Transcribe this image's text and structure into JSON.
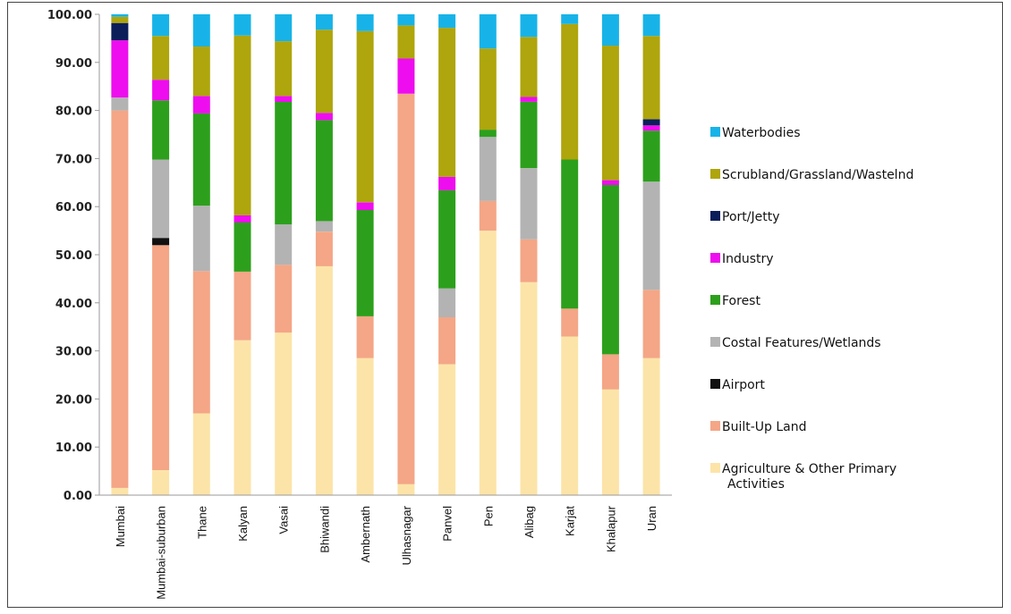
{
  "chart_data": {
    "type": "bar",
    "stacked": true,
    "title": "",
    "xlabel": "",
    "ylabel": "",
    "ylim": [
      0,
      100
    ],
    "yticks": [
      "0.00",
      "10.00",
      "20.00",
      "30.00",
      "40.00",
      "50.00",
      "60.00",
      "70.00",
      "80.00",
      "90.00",
      "100.00"
    ],
    "grid": false,
    "legend_position": "right",
    "categories": [
      "Mumbai",
      "Mumbai-suburban",
      "Thane",
      "Kalyan",
      "Vasai",
      "Bhiwandi",
      "Ambernath",
      "Ulhasnagar",
      "Panvel",
      "Pen",
      "Alibag",
      "Karjat",
      "Khalapur",
      "Uran"
    ],
    "series": [
      {
        "name": "Agriculture & Other Primary Activities",
        "color": "#FCE4A8",
        "values": [
          1.5,
          5.2,
          17.0,
          32.2,
          33.8,
          47.6,
          28.5,
          2.3,
          27.2,
          55.0,
          44.3,
          33.0,
          22.0,
          28.5
        ]
      },
      {
        "name": "Built-Up Land",
        "color": "#F4A686",
        "values": [
          78.5,
          46.8,
          29.6,
          14.3,
          14.1,
          7.2,
          8.7,
          81.2,
          9.8,
          6.2,
          8.9,
          5.8,
          7.3,
          14.2
        ]
      },
      {
        "name": "Airport",
        "color": "#111111",
        "values": [
          0,
          1.5,
          0,
          0,
          0,
          0,
          0,
          0,
          0,
          0,
          0,
          0,
          0,
          0
        ]
      },
      {
        "name": "Costal Features/Wetlands",
        "color": "#B3B3B3",
        "values": [
          2.7,
          16.3,
          13.6,
          0,
          8.4,
          2.2,
          0,
          0,
          6.0,
          13.3,
          14.8,
          0,
          0,
          22.5
        ]
      },
      {
        "name": "Forest",
        "color": "#2CA01C",
        "values": [
          0,
          12.3,
          19.2,
          10.2,
          25.5,
          21.0,
          22.1,
          0,
          20.4,
          1.5,
          13.8,
          31.0,
          35.2,
          10.6
        ]
      },
      {
        "name": "Industry",
        "color": "#EE0DEE",
        "values": [
          11.9,
          4.3,
          3.6,
          1.5,
          1.2,
          1.5,
          1.6,
          7.3,
          2.8,
          0,
          1.0,
          0,
          1.0,
          1.1
        ]
      },
      {
        "name": "Port/Jetty",
        "color": "#0B1E5A",
        "values": [
          3.6,
          0,
          0,
          0,
          0,
          0,
          0,
          0,
          0,
          0,
          0,
          0,
          0,
          1.3
        ]
      },
      {
        "name": "Scrubland/Grassland/Wastelnd",
        "color": "#AFA50C",
        "values": [
          1.3,
          9.1,
          10.3,
          37.4,
          11.4,
          17.3,
          35.6,
          6.9,
          31.0,
          16.9,
          12.5,
          28.2,
          28.0,
          17.3
        ]
      },
      {
        "name": "Waterbodies",
        "color": "#17B3E8",
        "values": [
          0.5,
          4.5,
          6.7,
          4.4,
          5.6,
          3.2,
          3.5,
          2.3,
          2.8,
          7.1,
          4.7,
          2.0,
          6.5,
          4.5
        ]
      }
    ]
  }
}
